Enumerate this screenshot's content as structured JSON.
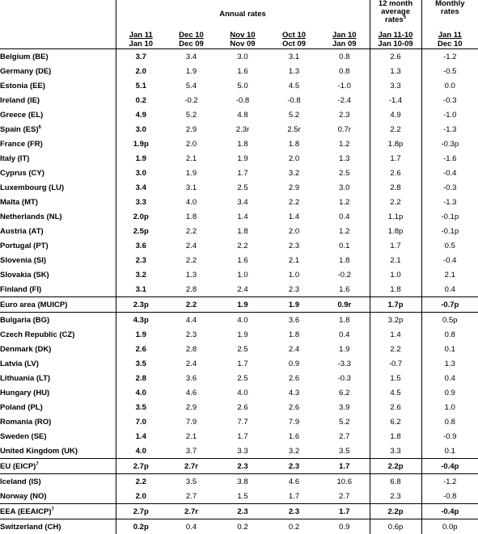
{
  "header": {
    "annual_rates": "Annual rates",
    "twelve_month_line1": "12 month",
    "twelve_month_line2": "average",
    "twelve_month_line3": "rates",
    "twelve_month_sup": "5",
    "monthly_line1": "Monthly",
    "monthly_line2": "rates",
    "columns": [
      {
        "top": "Jan 11",
        "bottom": "Jan 10"
      },
      {
        "top": "Dec 10",
        "bottom": "Dec 09"
      },
      {
        "top": "Nov 10",
        "bottom": "Nov 09"
      },
      {
        "top": "Oct 10",
        "bottom": "Oct 09"
      },
      {
        "top": "Jan 10",
        "bottom": "Jan 09"
      },
      {
        "top": "Jan 11-10",
        "bottom": "Jan 10-09"
      },
      {
        "top": "Jan 11",
        "bottom": "Dec 10"
      }
    ]
  },
  "rows": [
    {
      "name": "Belgium (BE)",
      "values": [
        "3.7",
        "3.4",
        "3.0",
        "3.1",
        "0.8",
        "2.6",
        "-1.2"
      ]
    },
    {
      "name": "Germany (DE)",
      "values": [
        "2.0",
        "1.9",
        "1.6",
        "1.3",
        "0.8",
        "1.3",
        "-0.5"
      ]
    },
    {
      "name": "Estonia (EE)",
      "values": [
        "5.1",
        "5.4",
        "5.0",
        "4.5",
        "-1.0",
        "3.3",
        "0.0"
      ]
    },
    {
      "name": "Ireland (IE)",
      "values": [
        "0.2",
        "-0.2",
        "-0.8",
        "-0.8",
        "-2.4",
        "-1.4",
        "-0.3"
      ]
    },
    {
      "name": "Greece (EL)",
      "values": [
        "4.9",
        "5.2",
        "4.8",
        "5.2",
        "2.3",
        "4.9",
        "-1.0"
      ]
    },
    {
      "name": "Spain (ES)",
      "sup": "6",
      "values": [
        "3.0",
        "2.9",
        "2.3r",
        "2.5r",
        "0.7r",
        "2.2",
        "-1.3"
      ]
    },
    {
      "name": "France (FR)",
      "values": [
        "1.9p",
        "2.0",
        "1.8",
        "1.8",
        "1.2",
        "1.8p",
        "-0.3p"
      ]
    },
    {
      "name": "Italy (IT)",
      "values": [
        "1.9",
        "2.1",
        "1.9",
        "2.0",
        "1.3",
        "1.7",
        "-1.6"
      ]
    },
    {
      "name": "Cyprus (CY)",
      "values": [
        "3.0",
        "1.9",
        "1.7",
        "3.2",
        "2.5",
        "2.6",
        "-0.4"
      ]
    },
    {
      "name": "Luxembourg (LU)",
      "values": [
        "3.4",
        "3.1",
        "2.5",
        "2.9",
        "3.0",
        "2.8",
        "-0.3"
      ]
    },
    {
      "name": "Malta (MT)",
      "values": [
        "3.3",
        "4.0",
        "3.4",
        "2.2",
        "1.2",
        "2.2",
        "-1.3"
      ]
    },
    {
      "name": "Netherlands (NL)",
      "values": [
        "2.0p",
        "1.8",
        "1.4",
        "1.4",
        "0.4",
        "1.1p",
        "-0.1p"
      ]
    },
    {
      "name": "Austria (AT)",
      "values": [
        "2.5p",
        "2.2",
        "1.8",
        "2.0",
        "1.2",
        "1.8p",
        "-0.1p"
      ]
    },
    {
      "name": "Portugal (PT)",
      "values": [
        "3.6",
        "2.4",
        "2.2",
        "2.3",
        "0.1",
        "1.7",
        "0.5"
      ]
    },
    {
      "name": "Slovenia (SI)",
      "values": [
        "2.3",
        "2.2",
        "1.6",
        "2.1",
        "1.8",
        "2.1",
        "-0.4"
      ]
    },
    {
      "name": "Slovakia (SK)",
      "values": [
        "3.2",
        "1.3",
        "1.0",
        "1.0",
        "-0.2",
        "1.0",
        "2.1"
      ]
    },
    {
      "name": "Finland (FI)",
      "values": [
        "3.1",
        "2.8",
        "2.4",
        "2.3",
        "1.6",
        "1.8",
        "0.4"
      ]
    },
    {
      "name": "Euro area (MUICP)",
      "aggregate": true,
      "values": [
        "2.3p",
        "2.2",
        "1.9",
        "1.9",
        "0.9r",
        "1.7p",
        "-0.7p"
      ]
    },
    {
      "name": "Bulgaria (BG)",
      "values": [
        "4.3p",
        "4.4",
        "4.0",
        "3.6",
        "1.8",
        "3.2p",
        "0.5p"
      ]
    },
    {
      "name": "Czech Republic (CZ)",
      "values": [
        "1.9",
        "2.3",
        "1.9",
        "1.8",
        "0.4",
        "1.4",
        "0.8"
      ]
    },
    {
      "name": "Denmark (DK)",
      "values": [
        "2.6",
        "2.8",
        "2.5",
        "2.4",
        "1.9",
        "2.2",
        "0.1"
      ]
    },
    {
      "name": "Latvia (LV)",
      "values": [
        "3.5",
        "2.4",
        "1.7",
        "0.9",
        "-3.3",
        "-0.7",
        "1.3"
      ]
    },
    {
      "name": "Lithuania (LT)",
      "values": [
        "2.8",
        "3.6",
        "2.5",
        "2.6",
        "-0.3",
        "1.5",
        "0.4"
      ]
    },
    {
      "name": "Hungary (HU)",
      "values": [
        "4.0",
        "4.6",
        "4.0",
        "4.3",
        "6.2",
        "4.5",
        "0.9"
      ]
    },
    {
      "name": "Poland (PL)",
      "values": [
        "3.5",
        "2.9",
        "2.6",
        "2.6",
        "3.9",
        "2.6",
        "1.0"
      ]
    },
    {
      "name": "Romania (RO)",
      "values": [
        "7.0",
        "7.9",
        "7.7",
        "7.9",
        "5.2",
        "6.2",
        "0.8"
      ]
    },
    {
      "name": "Sweden (SE)",
      "values": [
        "1.4",
        "2.1",
        "1.7",
        "1.6",
        "2.7",
        "1.8",
        "-0.9"
      ]
    },
    {
      "name": "United Kingdom (UK)",
      "values": [
        "4.0",
        "3.7",
        "3.3",
        "3.2",
        "3.5",
        "3.3",
        "0.1"
      ]
    },
    {
      "name": "EU (EICP)",
      "sup": "7",
      "aggregate": true,
      "values": [
        "2.7p",
        "2.7r",
        "2.3",
        "2.3",
        "1.7",
        "2.2p",
        "-0.4p"
      ]
    },
    {
      "name": "Iceland (IS)",
      "values": [
        "2.2",
        "3.5",
        "3.8",
        "4.6",
        "10.6",
        "6.8",
        "-1.2"
      ]
    },
    {
      "name": "Norway (NO)",
      "values": [
        "2.0",
        "2.7",
        "1.5",
        "1.7",
        "2.7",
        "2.3",
        "-0.8"
      ]
    },
    {
      "name": "EEA (EEAICP)",
      "sup": "7",
      "aggregate": true,
      "values": [
        "2.7p",
        "2.7r",
        "2.3",
        "2.3",
        "1.7",
        "2.2p",
        "-0.4p"
      ]
    },
    {
      "name": "Switzerland (CH)",
      "values": [
        "0.2p",
        "0.4",
        "0.2",
        "0.2",
        "0.9",
        "0.6p",
        "0.0p"
      ]
    }
  ]
}
